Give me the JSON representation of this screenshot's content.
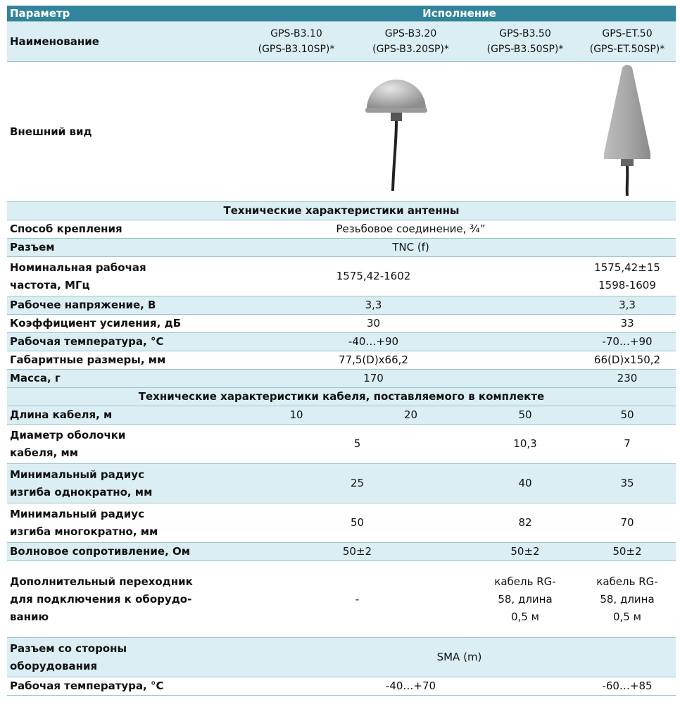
{
  "header": {
    "parameter": "Параметр",
    "execution": "Исполнение"
  },
  "name_row": {
    "label": "Наименование",
    "models": [
      "GPS-B3.10\n(GPS-B3.10SP)*",
      "GPS-B3.20\n(GPS-B3.20SP)*",
      "GPS-B3.50\n(GPS-B3.50SP)*",
      "GPS-ET.50\n(GPS-ET.50SP)*"
    ]
  },
  "appearance_row": {
    "label": "Внешний вид"
  },
  "antenna": {
    "title": "Технические характеристики антенны",
    "mounting": {
      "label": "Способ крепления",
      "value": "Резьбовое соединение, ¾”"
    },
    "connector": {
      "label": "Разъем",
      "value": "TNC (f)"
    },
    "frequency": {
      "label": "Номинальная рабочая\nчастота, МГц",
      "b3": "1575,42-1602",
      "et": "1575,42±15\n1598-1609"
    },
    "voltage": {
      "label": "Рабочее напряжение, В",
      "b3": "3,3",
      "et": "3,3"
    },
    "gain": {
      "label": "Коэффициент усиления, дБ",
      "b3": "30",
      "et": "33"
    },
    "temperature": {
      "label": "Рабочая температура, °С",
      "b3": "-40…+90",
      "et": "-70…+90"
    },
    "dimensions": {
      "label": "Габаритные размеры, мм",
      "b3": "77,5(D)x66,2",
      "et": "66(D)x150,2"
    },
    "mass": {
      "label": "Масса, г",
      "b3": "170",
      "et": "230"
    }
  },
  "cable": {
    "title": "Технические характеристики кабеля, поставляемого в комплекте",
    "length": {
      "label": "Длина кабеля, м",
      "values": [
        "10",
        "20",
        "50",
        "50"
      ]
    },
    "diameter": {
      "label": "Диаметр оболочки\nкабеля, мм",
      "b3_10_20": "5",
      "b3_50": "10,3",
      "et": "7"
    },
    "radius_single": {
      "label": "Минимальный радиус\nизгиба однократно, мм",
      "b3_10_20": "25",
      "b3_50": "40",
      "et": "35"
    },
    "radius_multi": {
      "label": "Минимальный радиус\nизгиба многократно, мм",
      "b3_10_20": "50",
      "b3_50": "82",
      "et": "70"
    },
    "impedance": {
      "label": "Волновое сопротивление, Ом",
      "b3_10_20": "50±2",
      "b3_50": "50±2",
      "et": "50±2"
    },
    "adapter": {
      "label": "Дополнительный переходник\nдля подключения к оборудо-\nванию",
      "b3_10_20": "-",
      "b3_50": "кабель RG-\n58, длина\n0,5 м",
      "et": "кабель RG-\n58, длина\n0,5 м"
    },
    "equipment_connector": {
      "label": "Разъем со стороны\nоборудования",
      "value": "SMA (m)"
    },
    "temperature": {
      "label": "Рабочая температура, °С",
      "b3": "-40…+70",
      "et": "-60…+85"
    }
  }
}
